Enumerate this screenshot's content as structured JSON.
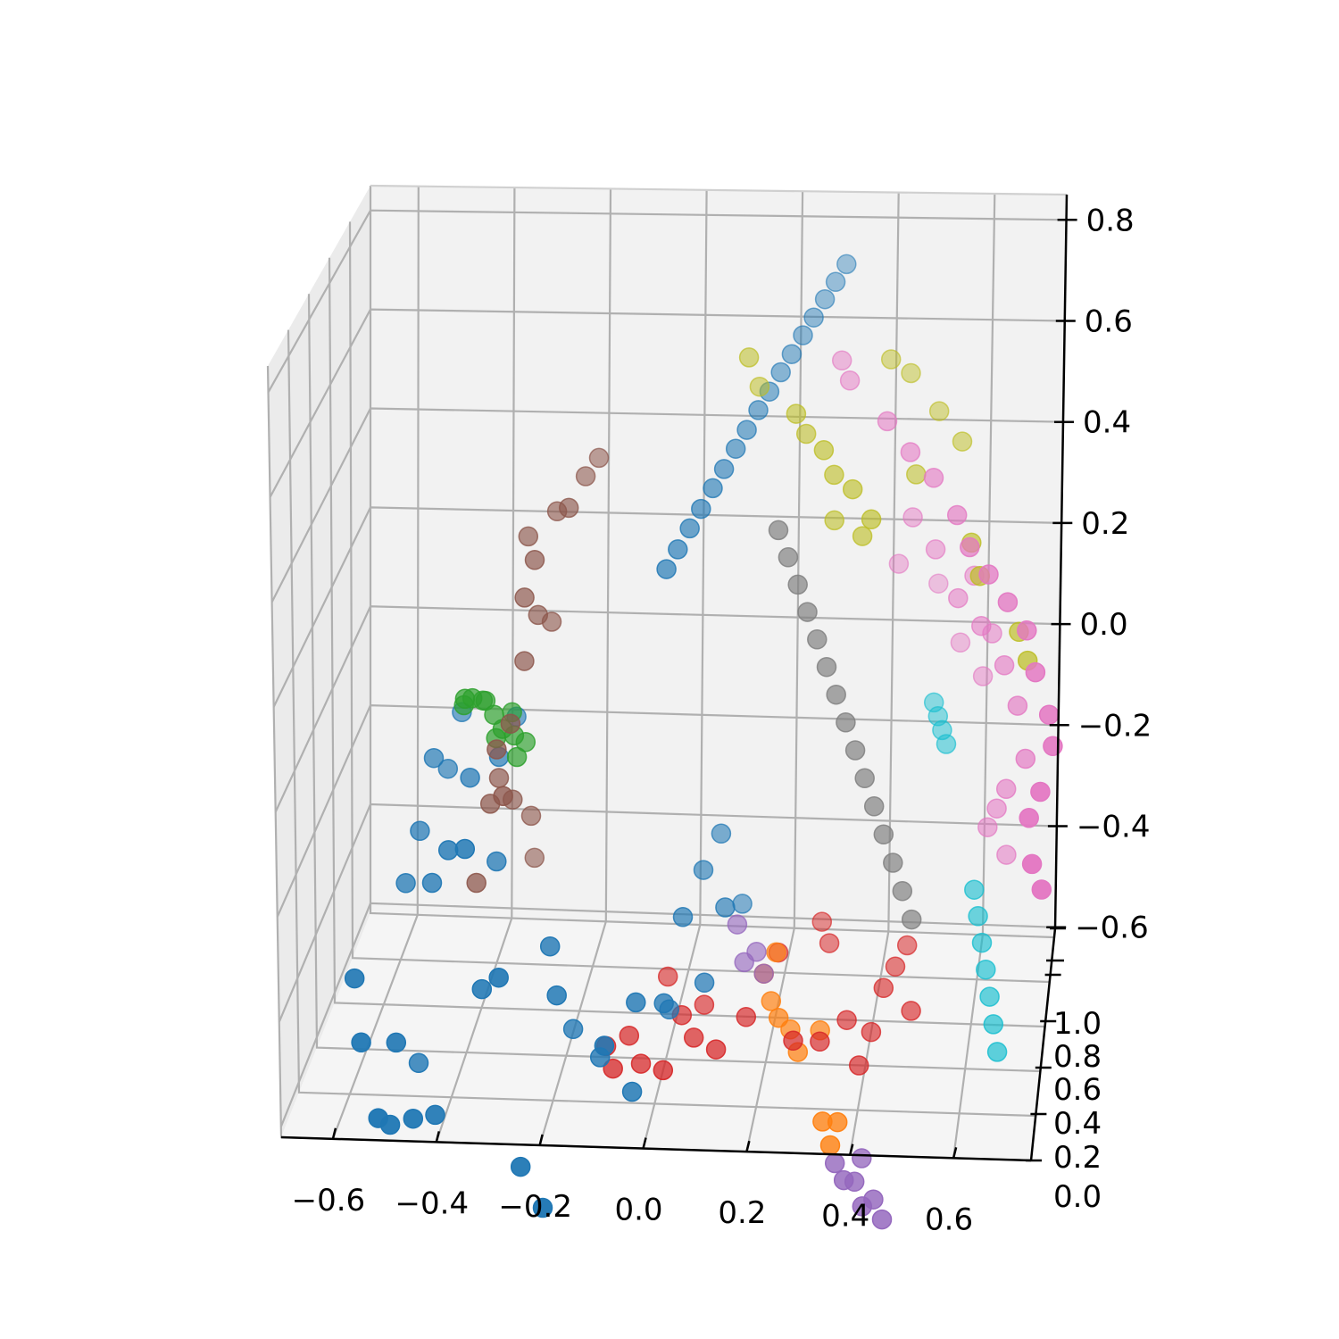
{
  "chart_data": {
    "type": "scatter",
    "projection": "3d",
    "grid": true,
    "title": "",
    "xlabel": "",
    "ylabel": "",
    "zlabel": "",
    "xlim": [
      -0.7,
      0.75
    ],
    "ylim": [
      0.0,
      1.0
    ],
    "zlim": [
      -0.62,
      0.85
    ],
    "x_ticks": [
      "−0.6",
      "−0.4",
      "−0.2",
      "0.0",
      "0.2",
      "0.4",
      "0.6"
    ],
    "y_ticks": [
      "0.0",
      "0.2",
      "0.4",
      "0.6",
      "0.8",
      "1.0"
    ],
    "z_ticks": [
      "−0.6",
      "−0.4",
      "−0.2",
      "0.0",
      "0.2",
      "0.4",
      "0.6",
      "0.8"
    ],
    "x_tick_values": [
      -0.6,
      -0.4,
      -0.2,
      0.0,
      0.2,
      0.4,
      0.6
    ],
    "y_tick_values": [
      0.0,
      0.2,
      0.4,
      0.6,
      0.8,
      1.0
    ],
    "z_tick_values": [
      -0.6,
      -0.4,
      -0.2,
      0.0,
      0.2,
      0.4,
      0.6,
      0.8
    ],
    "series": [
      {
        "color": "#1f77b4",
        "points": [
          [
            -0.58,
            0.15,
            -0.38
          ],
          [
            -0.56,
            0.1,
            -0.48
          ],
          [
            -0.52,
            0.05,
            -0.6
          ],
          [
            -0.5,
            0.07,
            -0.62
          ],
          [
            -0.46,
            0.1,
            -0.62
          ],
          [
            -0.42,
            0.12,
            -0.62
          ],
          [
            -0.5,
            0.15,
            -0.5
          ],
          [
            -0.48,
            0.3,
            -0.6
          ],
          [
            -0.52,
            0.4,
            -0.3
          ],
          [
            -0.5,
            0.45,
            -0.22
          ],
          [
            -0.48,
            0.5,
            -0.1
          ],
          [
            -0.46,
            0.55,
            -0.14
          ],
          [
            -0.44,
            0.6,
            -0.05
          ],
          [
            -0.46,
            0.35,
            -0.28
          ],
          [
            -0.42,
            0.3,
            -0.2
          ],
          [
            -0.4,
            0.45,
            -0.12
          ],
          [
            -0.38,
            0.25,
            -0.18
          ],
          [
            -0.35,
            0.5,
            -0.1
          ],
          [
            -0.34,
            0.4,
            -0.26
          ],
          [
            -0.33,
            0.6,
            -0.06
          ],
          [
            -0.34,
            0.2,
            -0.42
          ],
          [
            -0.3,
            0.15,
            -0.38
          ],
          [
            -0.22,
            0.3,
            -0.38
          ],
          [
            -0.2,
            0.25,
            -0.45
          ],
          [
            -0.18,
            0.35,
            -0.55
          ],
          [
            -0.12,
            0.3,
            -0.58
          ],
          [
            -0.05,
            0.25,
            -0.62
          ],
          [
            -0.1,
            0.2,
            -0.52
          ],
          [
            -0.05,
            0.3,
            -0.48
          ],
          [
            0.0,
            0.35,
            -0.5
          ],
          [
            0.02,
            0.5,
            -0.4
          ],
          [
            0.05,
            0.6,
            -0.35
          ],
          [
            0.08,
            0.65,
            -0.3
          ],
          [
            0.1,
            0.55,
            -0.4
          ],
          [
            0.12,
            0.7,
            -0.45
          ],
          [
            0.07,
            0.45,
            -0.5
          ],
          [
            0.0,
            0.45,
            -0.55
          ],
          [
            -0.25,
            0.1,
            -0.7
          ],
          [
            -0.2,
            0.05,
            -0.75
          ],
          [
            -0.02,
            0.5,
            0.24
          ],
          [
            0.0,
            0.52,
            0.27
          ],
          [
            0.02,
            0.55,
            0.3
          ],
          [
            0.04,
            0.57,
            0.33
          ],
          [
            0.06,
            0.6,
            0.36
          ],
          [
            0.08,
            0.62,
            0.39
          ],
          [
            0.1,
            0.65,
            0.42
          ],
          [
            0.12,
            0.67,
            0.45
          ],
          [
            0.14,
            0.7,
            0.48
          ],
          [
            0.16,
            0.72,
            0.51
          ],
          [
            0.18,
            0.75,
            0.54
          ],
          [
            0.2,
            0.77,
            0.57
          ],
          [
            0.22,
            0.8,
            0.6
          ],
          [
            0.24,
            0.82,
            0.63
          ],
          [
            0.26,
            0.85,
            0.66
          ],
          [
            0.28,
            0.87,
            0.69
          ],
          [
            0.3,
            0.9,
            0.72
          ]
        ]
      },
      {
        "color": "#ff7f0e",
        "points": [
          [
            0.18,
            0.55,
            -0.52
          ],
          [
            0.2,
            0.5,
            -0.55
          ],
          [
            0.22,
            0.45,
            -0.56
          ],
          [
            0.24,
            0.5,
            -0.6
          ],
          [
            0.26,
            0.45,
            -0.62
          ],
          [
            0.2,
            0.6,
            -0.5
          ],
          [
            0.32,
            0.35,
            -0.7
          ],
          [
            0.34,
            0.3,
            -0.72
          ],
          [
            0.35,
            0.35,
            -0.7
          ],
          [
            0.3,
            0.5,
            -0.6
          ]
        ]
      },
      {
        "color": "#2ca02c",
        "points": [
          [
            -0.42,
            0.5,
            0.0
          ],
          [
            -0.4,
            0.48,
            0.02
          ],
          [
            -0.38,
            0.52,
            0.0
          ],
          [
            -0.36,
            0.5,
            -0.02
          ],
          [
            -0.34,
            0.48,
            -0.04
          ],
          [
            -0.32,
            0.5,
            -0.06
          ],
          [
            -0.3,
            0.52,
            -0.08
          ],
          [
            -0.33,
            0.54,
            -0.03
          ],
          [
            -0.39,
            0.55,
            -0.01
          ],
          [
            -0.41,
            0.45,
            0.03
          ],
          [
            -0.35,
            0.46,
            -0.05
          ],
          [
            -0.31,
            0.47,
            -0.09
          ]
        ]
      },
      {
        "color": "#d62728",
        "points": [
          [
            -0.12,
            0.4,
            -0.6
          ],
          [
            -0.1,
            0.35,
            -0.62
          ],
          [
            -0.08,
            0.45,
            -0.6
          ],
          [
            -0.05,
            0.4,
            -0.63
          ],
          [
            0.0,
            0.35,
            -0.62
          ],
          [
            0.02,
            0.5,
            -0.58
          ],
          [
            0.05,
            0.45,
            -0.6
          ],
          [
            0.1,
            0.4,
            -0.6
          ],
          [
            0.15,
            0.5,
            -0.58
          ],
          [
            0.25,
            0.45,
            -0.6
          ],
          [
            0.3,
            0.5,
            -0.62
          ],
          [
            0.35,
            0.55,
            -0.6
          ],
          [
            0.38,
            0.5,
            -0.66
          ],
          [
            0.4,
            0.55,
            -0.62
          ],
          [
            0.42,
            0.6,
            -0.56
          ],
          [
            0.44,
            0.65,
            -0.54
          ],
          [
            0.48,
            0.55,
            -0.58
          ],
          [
            0.46,
            0.7,
            -0.52
          ],
          [
            0.3,
            0.7,
            -0.52
          ],
          [
            0.28,
            0.75,
            -0.5
          ],
          [
            0.2,
            0.65,
            -0.52
          ],
          [
            -0.02,
            0.6,
            -0.55
          ],
          [
            0.06,
            0.55,
            -0.58
          ]
        ]
      },
      {
        "color": "#9467bd",
        "points": [
          [
            0.12,
            0.6,
            -0.45
          ],
          [
            0.14,
            0.55,
            -0.5
          ],
          [
            0.16,
            0.6,
            -0.5
          ],
          [
            0.18,
            0.55,
            -0.52
          ],
          [
            0.35,
            0.3,
            -0.75
          ],
          [
            0.37,
            0.28,
            -0.77
          ],
          [
            0.39,
            0.3,
            -0.78
          ],
          [
            0.41,
            0.25,
            -0.8
          ],
          [
            0.43,
            0.28,
            -0.8
          ],
          [
            0.45,
            0.25,
            -0.82
          ],
          [
            0.4,
            0.35,
            -0.76
          ]
        ]
      },
      {
        "color": "#8c564b",
        "points": [
          [
            -0.3,
            0.55,
            0.3
          ],
          [
            -0.28,
            0.5,
            0.27
          ],
          [
            -0.25,
            0.6,
            0.33
          ],
          [
            -0.22,
            0.55,
            0.35
          ],
          [
            -0.2,
            0.65,
            0.38
          ],
          [
            -0.18,
            0.7,
            0.4
          ],
          [
            -0.3,
            0.5,
            0.2
          ],
          [
            -0.28,
            0.55,
            0.15
          ],
          [
            -0.26,
            0.6,
            0.12
          ],
          [
            -0.3,
            0.5,
            0.08
          ],
          [
            -0.32,
            0.45,
            -0.02
          ],
          [
            -0.34,
            0.4,
            -0.05
          ],
          [
            -0.35,
            0.5,
            -0.14
          ],
          [
            -0.36,
            0.45,
            -0.17
          ],
          [
            -0.33,
            0.55,
            -0.2
          ],
          [
            -0.38,
            0.4,
            -0.3
          ],
          [
            -0.3,
            0.6,
            -0.25
          ],
          [
            -0.3,
            0.65,
            -0.35
          ],
          [
            -0.32,
            0.35,
            -0.12
          ]
        ]
      },
      {
        "color": "#e377c2",
        "points": [
          [
            0.3,
            0.8,
            0.55
          ],
          [
            0.32,
            0.75,
            0.52
          ],
          [
            0.4,
            0.7,
            0.45
          ],
          [
            0.45,
            0.65,
            0.4
          ],
          [
            0.5,
            0.6,
            0.36
          ],
          [
            0.55,
            0.55,
            0.3
          ],
          [
            0.58,
            0.45,
            0.26
          ],
          [
            0.62,
            0.4,
            0.22
          ],
          [
            0.66,
            0.35,
            0.18
          ],
          [
            0.7,
            0.3,
            0.14
          ],
          [
            0.72,
            0.25,
            0.08
          ],
          [
            0.75,
            0.2,
            0.02
          ],
          [
            0.76,
            0.15,
            -0.02
          ],
          [
            0.74,
            0.1,
            -0.08
          ],
          [
            0.72,
            0.1,
            -0.12
          ],
          [
            0.73,
            0.05,
            -0.18
          ],
          [
            0.75,
            0.05,
            -0.22
          ],
          [
            0.45,
            0.8,
            0.25
          ],
          [
            0.5,
            0.75,
            0.2
          ],
          [
            0.55,
            0.7,
            0.12
          ],
          [
            0.6,
            0.65,
            0.08
          ],
          [
            0.65,
            0.6,
            0.02
          ],
          [
            0.68,
            0.55,
            -0.04
          ],
          [
            0.7,
            0.5,
            -0.12
          ],
          [
            0.66,
            0.6,
            -0.2
          ],
          [
            0.64,
            0.65,
            -0.25
          ],
          [
            0.62,
            0.7,
            -0.3
          ],
          [
            0.66,
            0.7,
            -0.35
          ],
          [
            0.5,
            0.9,
            0.1
          ],
          [
            0.55,
            0.85,
            0.0
          ],
          [
            0.6,
            0.8,
            -0.05
          ],
          [
            0.42,
            0.85,
            0.15
          ],
          [
            0.58,
            0.75,
            0.15
          ],
          [
            0.62,
            0.72,
            0.05
          ]
        ]
      },
      {
        "color": "#7f7f7f",
        "points": [
          [
            0.2,
            0.5,
            0.3
          ],
          [
            0.22,
            0.5,
            0.25
          ],
          [
            0.24,
            0.5,
            0.2
          ],
          [
            0.26,
            0.5,
            0.15
          ],
          [
            0.28,
            0.5,
            0.1
          ],
          [
            0.3,
            0.5,
            0.05
          ],
          [
            0.32,
            0.5,
            0.0
          ],
          [
            0.34,
            0.5,
            -0.05
          ],
          [
            0.36,
            0.5,
            -0.1
          ],
          [
            0.38,
            0.5,
            -0.15
          ],
          [
            0.4,
            0.5,
            -0.2
          ],
          [
            0.42,
            0.5,
            -0.25
          ],
          [
            0.44,
            0.5,
            -0.3
          ],
          [
            0.46,
            0.5,
            -0.35
          ],
          [
            0.48,
            0.5,
            -0.4
          ]
        ]
      },
      {
        "color": "#bcbd22",
        "points": [
          [
            0.12,
            0.7,
            0.58
          ],
          [
            0.14,
            0.72,
            0.52
          ],
          [
            0.22,
            0.65,
            0.48
          ],
          [
            0.24,
            0.66,
            0.44
          ],
          [
            0.28,
            0.6,
            0.42
          ],
          [
            0.3,
            0.62,
            0.37
          ],
          [
            0.34,
            0.58,
            0.35
          ],
          [
            0.38,
            0.55,
            0.3
          ],
          [
            0.36,
            0.6,
            0.26
          ],
          [
            0.3,
            0.65,
            0.28
          ],
          [
            0.4,
            0.8,
            0.55
          ],
          [
            0.44,
            0.82,
            0.52
          ],
          [
            0.5,
            0.8,
            0.45
          ],
          [
            0.55,
            0.75,
            0.4
          ],
          [
            0.58,
            0.55,
            0.25
          ],
          [
            0.6,
            0.5,
            0.2
          ],
          [
            0.68,
            0.5,
            0.1
          ],
          [
            0.7,
            0.45,
            0.06
          ],
          [
            0.46,
            0.7,
            0.35
          ]
        ]
      },
      {
        "color": "#17becf",
        "points": [
          [
            0.5,
            0.8,
            -0.1
          ],
          [
            0.51,
            0.78,
            -0.12
          ],
          [
            0.52,
            0.76,
            -0.14
          ],
          [
            0.53,
            0.74,
            -0.16
          ],
          [
            0.6,
            0.6,
            -0.38
          ],
          [
            0.61,
            0.58,
            -0.42
          ],
          [
            0.62,
            0.56,
            -0.46
          ],
          [
            0.63,
            0.54,
            -0.5
          ],
          [
            0.64,
            0.52,
            -0.54
          ],
          [
            0.65,
            0.5,
            -0.58
          ],
          [
            0.66,
            0.48,
            -0.62
          ]
        ]
      }
    ]
  }
}
